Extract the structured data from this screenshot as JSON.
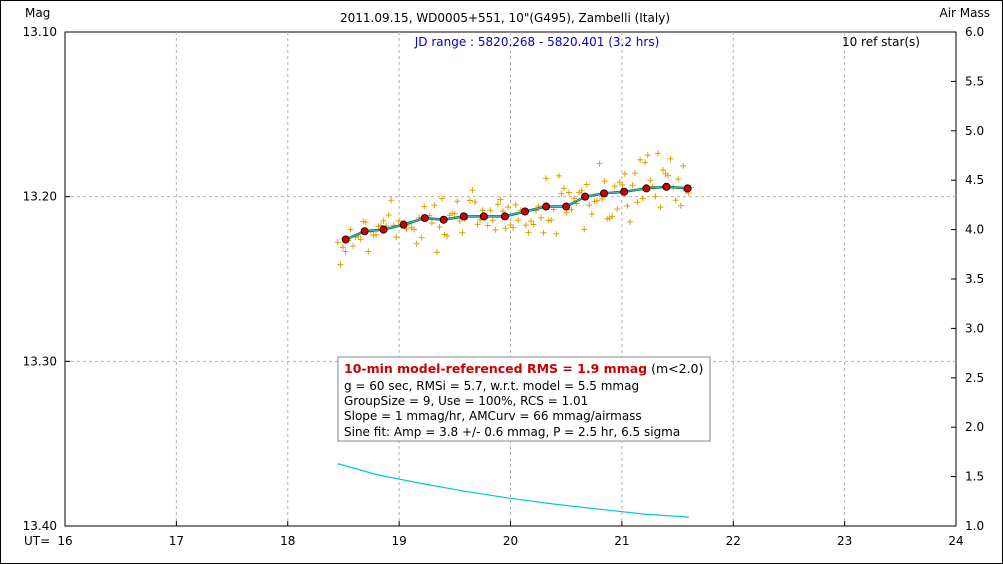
{
  "chart_data": {
    "type": "scatter",
    "title": "2011.09.15, WD0005+551, 10\"(G495), Zambelli (Italy)",
    "subtitle": "JD range : 5820.268 - 5820.401 (3.2 hrs)",
    "ref_stars": "10 ref star(s)",
    "ylabel_left": "Mag",
    "ylabel_right": "Air Mass",
    "xlabel": "UT=",
    "xlim": [
      16,
      24
    ],
    "ylim_left": [
      13.4,
      13.1
    ],
    "ylim_right": [
      1.0,
      6.0
    ],
    "x_ticks": [
      "16",
      "17",
      "18",
      "19",
      "20",
      "21",
      "22",
      "23",
      "24"
    ],
    "y_left_ticks": [
      "13.10",
      "13.20",
      "13.30",
      "13.40"
    ],
    "y_right_ticks": [
      "6.0",
      "5.5",
      "5.0",
      "4.5",
      "4.0",
      "3.5",
      "3.0",
      "2.5",
      "2.0",
      "1.5",
      "1.0"
    ],
    "grid": true,
    "colors": {
      "raw_points": "#e0a000",
      "binned_points": "#cc0000",
      "model_line": "#007a3d",
      "fit_line": "#5ab0d8",
      "airmass_line": "#00c8e0",
      "subtitle": "#0000cc",
      "grid": "#b0b0b0"
    },
    "series": [
      {
        "name": "binned",
        "x": [
          18.52,
          18.69,
          18.86,
          19.04,
          19.23,
          19.4,
          19.58,
          19.76,
          19.95,
          20.13,
          20.32,
          20.5,
          20.67,
          20.84,
          21.02,
          21.22,
          21.4,
          21.59
        ],
        "values": [
          13.226,
          13.221,
          13.22,
          13.217,
          13.213,
          13.214,
          13.212,
          13.212,
          13.212,
          13.209,
          13.206,
          13.206,
          13.2,
          13.198,
          13.197,
          13.195,
          13.194,
          13.195
        ]
      },
      {
        "name": "airmass",
        "x": [
          18.45,
          18.8,
          19.2,
          19.6,
          20.0,
          20.4,
          20.8,
          21.2,
          21.6
        ],
        "values": [
          1.63,
          1.52,
          1.43,
          1.35,
          1.28,
          1.22,
          1.17,
          1.12,
          1.09
        ]
      }
    ],
    "raw_scatter": {
      "x_start": 18.45,
      "x_end": 21.62,
      "count": 140,
      "scatter_mag": 0.009
    },
    "stats_box": {
      "headline": "10-min model-referenced RMS = 1.9 mmag",
      "headline_suffix": " (m<2.0)",
      "lines": [
        "g = 60 sec, RMSi = 5.7, w.r.t. model = 5.5 mmag",
        "GroupSize = 9, Use = 100%, RCS = 1.01",
        "Slope = 1 mmag/hr, AMCurv = 66 mmag/airmass",
        "Sine fit: Amp = 3.8 +/- 0.6 mmag, P = 2.5 hr, 6.5 sigma"
      ]
    }
  }
}
